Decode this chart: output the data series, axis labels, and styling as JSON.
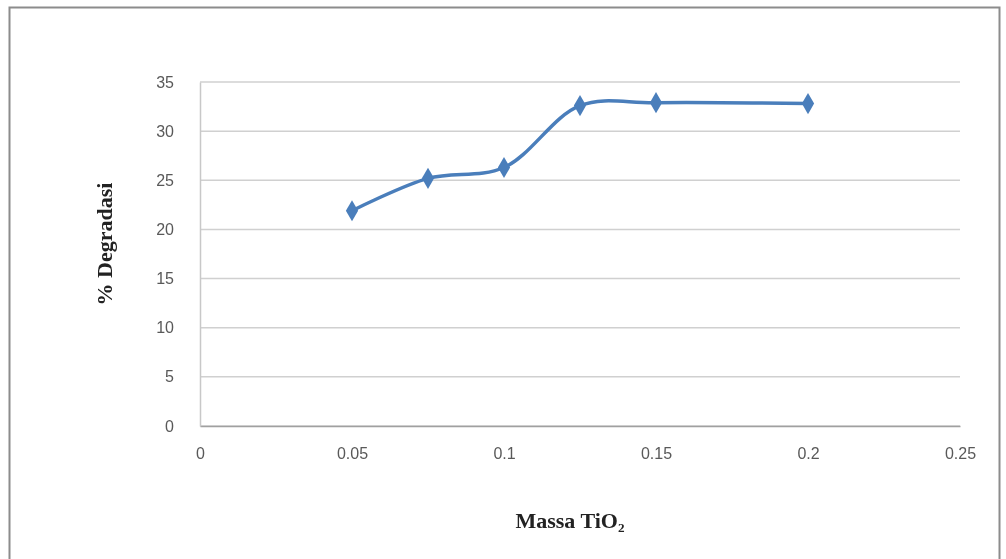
{
  "chart_data": {
    "type": "line",
    "xlabel": "Massa TiO₂",
    "ylabel": "% Degradasi",
    "x": [
      0.05,
      0.075,
      0.1,
      0.125,
      0.15,
      0.2
    ],
    "series": [
      {
        "color": "#4a7ebb",
        "values": [
          21.9,
          25.2,
          26.3,
          32.6,
          32.9,
          32.8
        ]
      }
    ],
    "xlim": [
      0,
      0.25
    ],
    "xticks": [
      0,
      0.05,
      0.1,
      0.15,
      0.2,
      0.25
    ],
    "ylim": [
      0,
      35
    ],
    "yticks": [
      0,
      5,
      10,
      15,
      20,
      25,
      30,
      35
    ],
    "grid": "y",
    "marker": "diamond",
    "line_style": "solid"
  }
}
